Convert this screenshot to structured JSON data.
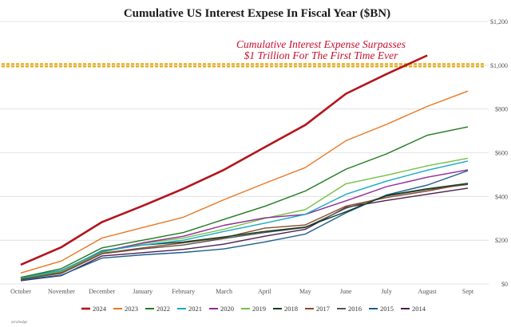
{
  "chart_data": {
    "type": "line",
    "title": "Cumulative US Interest Expese In Fiscal Year ($BN)",
    "categories": [
      "October",
      "November",
      "December",
      "January",
      "February",
      "March",
      "April",
      "May",
      "June",
      "July",
      "August",
      "Sept"
    ],
    "ylim": [
      0,
      1200
    ],
    "yticks": [
      0,
      200,
      400,
      600,
      800,
      1000,
      1200
    ],
    "ytick_labels": [
      "$0",
      "$200",
      "$400",
      "$600",
      "$800",
      "$1,000",
      "$1,200"
    ],
    "grid": "horizontal",
    "legend_position": "bottom",
    "reference_line": {
      "value": 1000,
      "color": "#e8a500"
    },
    "annotation": {
      "lines": [
        "Cumulative Interest Expense Surpasses",
        "$1 Trillion For The First Time Ever"
      ],
      "color": "#c8102e"
    },
    "source_note": "zerohedge",
    "series": [
      {
        "name": "2024",
        "color": "#b3141c",
        "values": [
          88,
          168,
          283,
          357,
          435,
          522,
          625,
          727,
          870,
          960,
          1045,
          null
        ]
      },
      {
        "name": "2023",
        "color": "#e87722",
        "values": [
          50,
          105,
          210,
          258,
          305,
          385,
          460,
          532,
          655,
          730,
          812,
          882
        ]
      },
      {
        "name": "2022",
        "color": "#1f7a1f",
        "values": [
          30,
          70,
          165,
          200,
          235,
          295,
          355,
          425,
          525,
          595,
          680,
          718
        ]
      },
      {
        "name": "2021",
        "color": "#1aa8c4",
        "values": [
          28,
          62,
          150,
          178,
          200,
          240,
          278,
          318,
          410,
          470,
          520,
          562
        ]
      },
      {
        "name": "2020",
        "color": "#8e2b97",
        "values": [
          30,
          62,
          148,
          188,
          218,
          268,
          302,
          318,
          380,
          445,
          488,
          522
        ]
      },
      {
        "name": "2019",
        "color": "#74c044",
        "values": [
          26,
          58,
          144,
          185,
          210,
          250,
          300,
          340,
          458,
          497,
          540,
          575
        ]
      },
      {
        "name": "2018",
        "color": "#0d3d1f",
        "values": [
          24,
          58,
          152,
          178,
          192,
          215,
          240,
          260,
          330,
          405,
          435,
          460
        ]
      },
      {
        "name": "2017",
        "color": "#8b4a2b",
        "values": [
          25,
          52,
          140,
          165,
          188,
          212,
          255,
          270,
          356,
          395,
          425,
          460
        ]
      },
      {
        "name": "2016",
        "color": "#555555",
        "values": [
          22,
          48,
          138,
          160,
          178,
          208,
          235,
          258,
          346,
          402,
          432,
          455
        ]
      },
      {
        "name": "2015",
        "color": "#1f5c8b",
        "values": [
          18,
          40,
          118,
          133,
          144,
          160,
          192,
          228,
          325,
          407,
          452,
          518
        ]
      },
      {
        "name": "2014",
        "color": "#4a1f4f",
        "values": [
          15,
          38,
          128,
          143,
          158,
          182,
          218,
          250,
          350,
          382,
          410,
          438
        ]
      }
    ]
  }
}
